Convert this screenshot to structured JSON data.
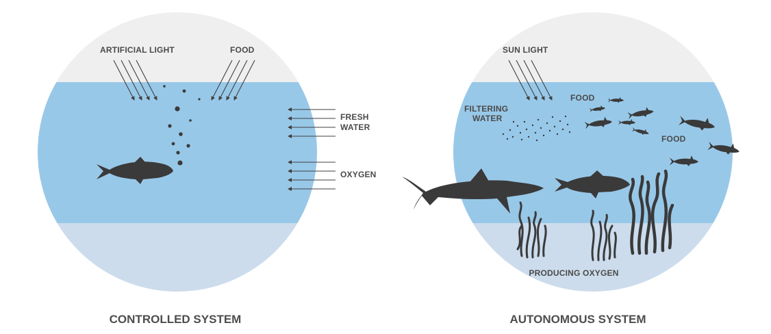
{
  "colors": {
    "sky": "#efefef",
    "water": "#98c8e8",
    "seabed": "#ccdcec",
    "ink": "#3a3a3a",
    "label": "#4a4a4a"
  },
  "controlled": {
    "caption": "CONTROLLED SYSTEM",
    "artificial_light_label": "ARTIFICIAL LIGHT",
    "food_label": "FOOD",
    "fresh_label": "FRESH",
    "water_label": "WATER",
    "oxygen_label": "OXYGEN"
  },
  "autonomous": {
    "caption": "AUTONOMOUS SYSTEM",
    "sun_light_label": "SUN LIGHT",
    "food_label_top": "FOOD",
    "filtering_label": "FILTERING",
    "water_label": "WATER",
    "food_label_right": "FOOD",
    "producing_oxygen_label": "PRODUCING OXYGEN"
  },
  "icons": [
    "fish-icon",
    "shark-icon",
    "seaweed-icon",
    "arrow-icon",
    "bubble-icon"
  ]
}
